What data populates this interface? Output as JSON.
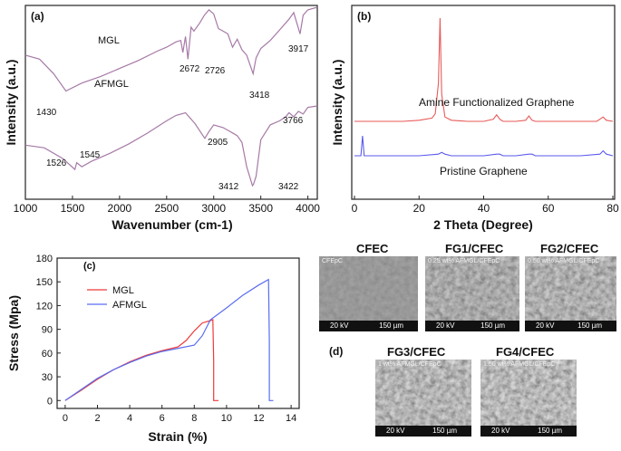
{
  "chart_data": [
    {
      "panel": "(a)",
      "type": "line",
      "xlabel": "Wavenumber (cm-1)",
      "ylabel": "Intensity (a.u.)",
      "xlim": [
        1000,
        4100
      ],
      "xticks": [
        1000,
        1500,
        2000,
        2500,
        3000,
        3500,
        4000
      ],
      "series": [
        {
          "name": "MGL",
          "color": "#a67aa6",
          "x": [
            1000,
            1150,
            1300,
            1430,
            1600,
            1800,
            2000,
            2200,
            2400,
            2500,
            2600,
            2650,
            2672,
            2700,
            2726,
            2760,
            2790,
            2850,
            2900,
            2950,
            3000,
            3050,
            3100,
            3150,
            3200,
            3250,
            3300,
            3350,
            3418,
            3450,
            3500,
            3600,
            3700,
            3800,
            3850,
            3917,
            3950,
            4000,
            4100
          ],
          "y": [
            66,
            63,
            52,
            39,
            45,
            50,
            56,
            62,
            69,
            72,
            76,
            77,
            68,
            80,
            63,
            87,
            84,
            90,
            96,
            100,
            97,
            86,
            84,
            82,
            72,
            78,
            70,
            66,
            52,
            64,
            71,
            77,
            85,
            93,
            98,
            82,
            96,
            100,
            102
          ]
        },
        {
          "name": "AFMGL",
          "color": "#a67aa6",
          "x": [
            1000,
            1200,
            1400,
            1526,
            1545,
            1600,
            1700,
            1900,
            2100,
            2300,
            2500,
            2600,
            2700,
            2800,
            2905,
            2950,
            3000,
            3100,
            3200,
            3250,
            3300,
            3350,
            3412,
            3422,
            3450,
            3500,
            3600,
            3700,
            3766,
            3800,
            3850,
            3900,
            3950,
            4000,
            4100
          ],
          "y": [
            28,
            26,
            18,
            10,
            15,
            12,
            16,
            22,
            29,
            37,
            46,
            50,
            52,
            44,
            33,
            38,
            43,
            41,
            37,
            35,
            30,
            12,
            -2,
            -1,
            5,
            32,
            43,
            46,
            49,
            52,
            49,
            53,
            51,
            56,
            57
          ]
        }
      ],
      "annotations": [
        "MGL",
        "AFMGL",
        "1430",
        "2672",
        "2726",
        "3418",
        "3917",
        "1526",
        "1545",
        "2905",
        "3412",
        "3422",
        "3766"
      ]
    },
    {
      "panel": "(b)",
      "type": "line",
      "xlabel": "2 Theta (Degree)",
      "ylabel": "Intensity (a.u.)",
      "xlim": [
        0,
        80
      ],
      "xticks": [
        0,
        20,
        40,
        60,
        80
      ],
      "series": [
        {
          "name": "Amine Functionalized Graphene",
          "color": "#e85a5a",
          "x": [
            0,
            5,
            10,
            15,
            20,
            24,
            25,
            26,
            26.5,
            27,
            28,
            30,
            35,
            40,
            43,
            44,
            45,
            46,
            50,
            53,
            54,
            55,
            56,
            60,
            65,
            70,
            75,
            76,
            77,
            78,
            80
          ],
          "y": [
            5,
            5,
            5,
            5,
            6,
            8,
            12,
            40,
            100,
            30,
            9,
            6,
            5,
            5,
            7,
            11,
            7,
            5,
            5,
            6,
            10,
            6,
            5,
            5,
            5,
            5,
            5,
            7,
            9,
            6,
            5
          ]
        },
        {
          "name": "Pristine Graphene",
          "color": "#5a5aee",
          "x": [
            0,
            1,
            2,
            2.5,
            3,
            4,
            10,
            20,
            26,
            27,
            28,
            30,
            40,
            44,
            45,
            46,
            50,
            54,
            55,
            56,
            60,
            70,
            76,
            77,
            78,
            80
          ],
          "y": [
            0,
            0,
            0,
            12,
            0,
            0,
            0,
            0,
            1,
            2,
            1,
            0,
            0,
            1,
            1,
            0,
            0,
            1,
            1,
            0,
            0,
            0,
            1,
            3,
            1,
            0
          ]
        }
      ],
      "annotations": [
        "Amine Functionalized Graphene",
        "Pristine Graphene"
      ]
    },
    {
      "panel": "(c)",
      "type": "line",
      "xlabel": "Strain (%)",
      "ylabel": "Stress (Mpa)",
      "xlim": [
        -0.5,
        14.5
      ],
      "ylim": [
        -10,
        180
      ],
      "xticks": [
        0,
        2,
        4,
        6,
        8,
        10,
        12,
        14
      ],
      "yticks": [
        0,
        30,
        60,
        90,
        120,
        150,
        180
      ],
      "legend": "top-left",
      "series": [
        {
          "name": "MGL",
          "color": "#ee3a3a",
          "x": [
            0,
            1,
            2,
            3,
            4,
            5,
            6,
            7,
            7.5,
            8,
            8.5,
            9,
            9.15,
            9.2,
            9.2,
            9.5
          ],
          "y": [
            0,
            13,
            27,
            39,
            49,
            57,
            63,
            68,
            76,
            88,
            98,
            101,
            102,
            50,
            0,
            0
          ]
        },
        {
          "name": "AFMGL",
          "color": "#5a6cf0",
          "x": [
            0,
            1,
            2,
            3,
            4,
            5,
            6,
            7,
            8,
            8.5,
            9,
            10,
            11,
            12,
            12.6,
            12.65,
            12.65,
            12.9
          ],
          "y": [
            0,
            14,
            28,
            39,
            48,
            56,
            62,
            66,
            70,
            82,
            102,
            117,
            133,
            146,
            153,
            75,
            0,
            0
          ]
        }
      ]
    }
  ],
  "panel_d": {
    "label": "(d)",
    "images": [
      {
        "title": "CFEC",
        "note": "CFEpC",
        "kv": "20 kV",
        "scale": "150 µm"
      },
      {
        "title": "FG1/CFEC",
        "note": "0.25 wt% AFMGL/CFEpC",
        "kv": "20 kV",
        "scale": "150 µm"
      },
      {
        "title": "FG2/CFEC",
        "note": "0.50 wt% AFMGL/CFEpC",
        "kv": "20 kV",
        "scale": "150 µm"
      },
      {
        "title": "FG3/CFEC",
        "note": "1 wt% AFMGL/CFEpC",
        "kv": "20 kV",
        "scale": "150 µm"
      },
      {
        "title": "FG4/CFEC",
        "note": "1.50 wt% AFMGL/CFEpC",
        "kv": "20 kV",
        "scale": "150 µm"
      }
    ]
  }
}
